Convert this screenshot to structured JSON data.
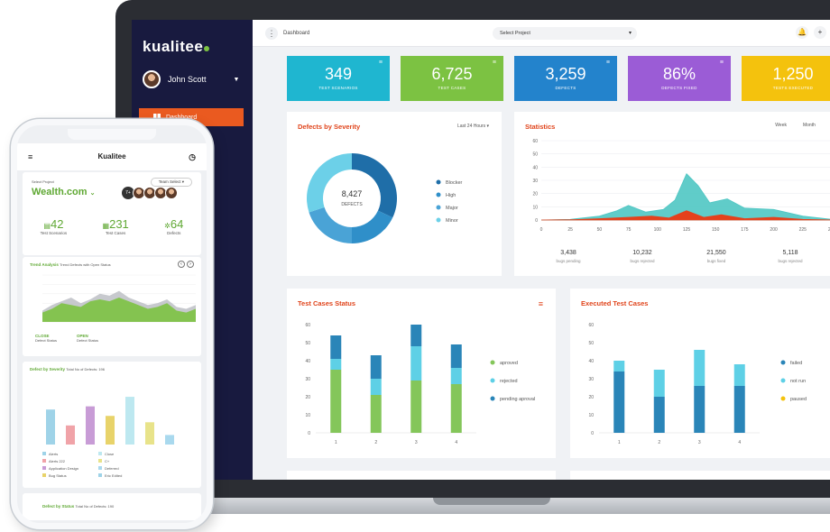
{
  "laptop": {
    "sidebar": {
      "logo": "kualitee",
      "user_name": "John Scott",
      "active_item": "Dashboard"
    },
    "topbar": {
      "breadcrumb": "Dashboard",
      "select_project": "Select Project"
    },
    "kpis": [
      {
        "value": "349",
        "label": "TEST SCENARIOS",
        "color": "#1fb6d0"
      },
      {
        "value": "6,725",
        "label": "TEST CASES",
        "color": "#7cc242"
      },
      {
        "value": "3,259",
        "label": "DEFECTS",
        "color": "#2383cc"
      },
      {
        "value": "86%",
        "label": "DEFECTS FIXED",
        "color": "#9b5cd6"
      },
      {
        "value": "1,250",
        "label": "TESTS EXECUTED",
        "color": "#f4c20d"
      }
    ],
    "defects_by_severity": {
      "title": "Defects by Severity",
      "range": "Last 24 Hours",
      "center_value": "8,427",
      "center_label": "DEFECTS",
      "legend": [
        "Blocker",
        "High",
        "Major",
        "Minor"
      ],
      "colors": [
        "#1f6ea8",
        "#2f8fc9",
        "#4aa3d6",
        "#6cd0e8"
      ],
      "shares": [
        0.32,
        0.18,
        0.2,
        0.3
      ]
    },
    "statistics": {
      "title": "Statistics",
      "tabs": [
        "Week",
        "Month",
        "Year"
      ],
      "y_ticks": [
        "60",
        "50",
        "40",
        "30",
        "20",
        "10",
        "0"
      ],
      "x_ticks": [
        "0",
        "25",
        "50",
        "75",
        "100",
        "125",
        "150",
        "175",
        "200",
        "225",
        "250"
      ],
      "totals": [
        {
          "value": "3,438",
          "label": "bugs pending"
        },
        {
          "value": "10,232",
          "label": "bugs rejected"
        },
        {
          "value": "21,550",
          "label": "bugs fixed"
        },
        {
          "value": "5,118",
          "label": "bugs rejected"
        }
      ]
    },
    "test_cases_status": {
      "title": "Test Cases Status",
      "y_ticks": [
        "60",
        "50",
        "40",
        "30",
        "20",
        "10",
        "0"
      ],
      "categories": [
        "1",
        "2",
        "3",
        "4"
      ],
      "series": [
        {
          "name": "aproved",
          "color": "#84c65a",
          "values": [
            35,
            21,
            29,
            27
          ]
        },
        {
          "name": "rejected",
          "color": "#5ed0e6",
          "values": [
            6,
            9,
            19,
            9
          ]
        },
        {
          "name": "pending aproval",
          "color": "#2a85b8",
          "values": [
            13,
            13,
            12,
            13
          ]
        }
      ]
    },
    "executed_test_cases": {
      "title": "Executed Test Cases",
      "y_ticks": [
        "60",
        "50",
        "40",
        "30",
        "20",
        "10",
        "0"
      ],
      "categories": [
        "1",
        "2",
        "3",
        "4"
      ],
      "legend": [
        "failed",
        "not run",
        "paused"
      ],
      "legend_colors": [
        "#2a85b8",
        "#5ed0e6",
        "#f4c20d"
      ],
      "series": [
        {
          "name": "failed",
          "color": "#2a85b8",
          "values": [
            34,
            20,
            26,
            26
          ]
        },
        {
          "name": "not run",
          "color": "#5ed0e6",
          "values": [
            6,
            15,
            20,
            12
          ]
        }
      ]
    }
  },
  "phone": {
    "title": "Kualitee",
    "select_project_label": "Select Project",
    "team_select": "Team Select",
    "project": "Wealth.com",
    "avatar_count": "7+",
    "stats": [
      {
        "value": "42",
        "label": "Test Scenarios"
      },
      {
        "value": "231",
        "label": "Test Cases"
      },
      {
        "value": "64",
        "label": "Defects"
      }
    ],
    "trend": {
      "title": "Trend Analysis",
      "subtitle": "Trend Defects with Open Status",
      "close_label": "CLOSE",
      "close_sub": "Defect Status",
      "open_label": "OPEN",
      "open_sub": "Defect Status"
    },
    "defect_severity": {
      "title": "Defect by Severity",
      "subtitle": "Total No of Defects: 196",
      "legend": [
        "Alerts",
        "Alerts 222",
        "Application Design",
        "Bug Status",
        "Close",
        "C+",
        "Deferred",
        "Eric Edited"
      ]
    },
    "defect_status": {
      "title": "Defect by Status",
      "subtitle": "Total No of Defects: 190"
    }
  }
}
